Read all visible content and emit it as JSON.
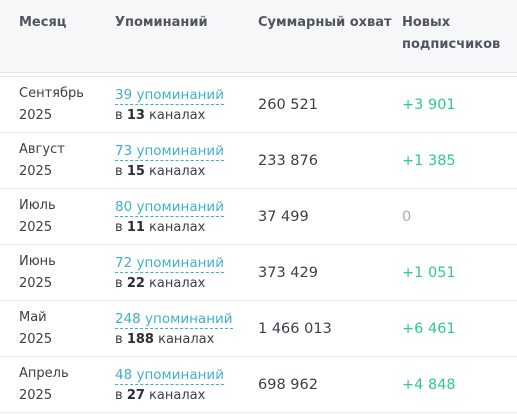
{
  "table": {
    "headers": {
      "month": "Месяц",
      "mentions": "Упоминаний",
      "reach": "Суммарный охват",
      "subscribers": "Новых подписчиков"
    },
    "rows": [
      {
        "month": "Сентябрь",
        "year": "2025",
        "mentions_label": "39 упоминаний",
        "channels_prefix": "в",
        "channels_count": "13",
        "channels_suffix": "каналах",
        "reach": "260 521",
        "subscribers": "+3 901",
        "subscribers_kind": "positive"
      },
      {
        "month": "Август",
        "year": "2025",
        "mentions_label": "73 упоминаний",
        "channels_prefix": "в",
        "channels_count": "15",
        "channels_suffix": "каналах",
        "reach": "233 876",
        "subscribers": "+1 385",
        "subscribers_kind": "positive"
      },
      {
        "month": "Июль",
        "year": "2025",
        "mentions_label": "80 упоминаний",
        "channels_prefix": "в",
        "channels_count": "11",
        "channels_suffix": "каналах",
        "reach": "37 499",
        "subscribers": "0",
        "subscribers_kind": "zero"
      },
      {
        "month": "Июнь",
        "year": "2025",
        "mentions_label": "72 упоминаний",
        "channels_prefix": "в",
        "channels_count": "22",
        "channels_suffix": "каналах",
        "reach": "373 429",
        "subscribers": "+1 051",
        "subscribers_kind": "positive"
      },
      {
        "month": "Май",
        "year": "2025",
        "mentions_label": "248 упоминаний",
        "channels_prefix": "в",
        "channels_count": "188",
        "channels_suffix": "каналах",
        "reach": "1 466 013",
        "subscribers": "+6 461",
        "subscribers_kind": "positive"
      },
      {
        "month": "Апрель",
        "year": "2025",
        "mentions_label": "48 упоминаний",
        "channels_prefix": "в",
        "channels_count": "27",
        "channels_suffix": "каналах",
        "reach": "698 962",
        "subscribers": "+4 848",
        "subscribers_kind": "positive"
      }
    ]
  },
  "colors": {
    "link": "#3fb0cc",
    "positive": "#2ecc8a",
    "zero": "#a6abb3",
    "header_bg": "#f6f7f9",
    "border": "#e3e6ea"
  }
}
